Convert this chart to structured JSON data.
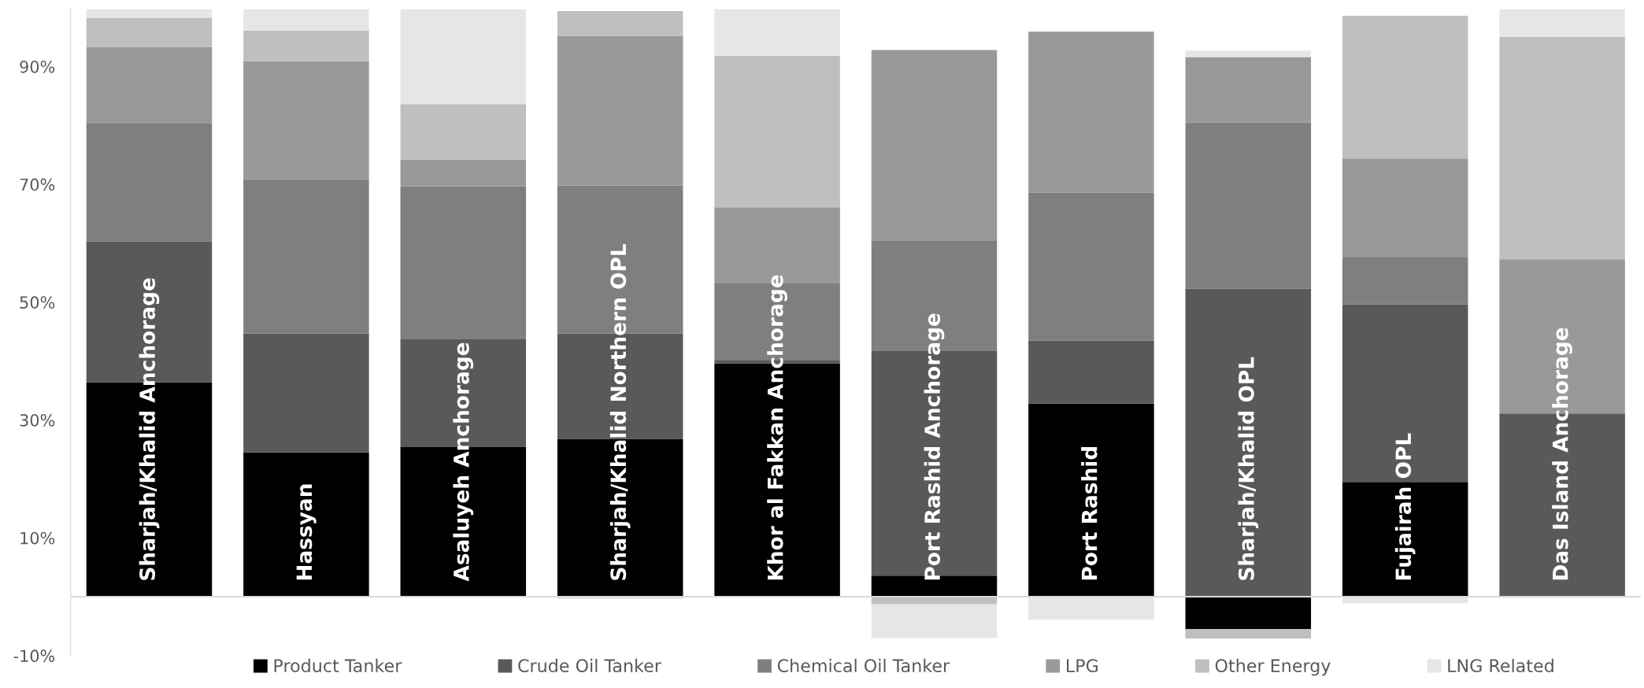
{
  "chart_data": {
    "type": "bar",
    "stacked": true,
    "legend": "bottom",
    "grid": false,
    "categories": [
      "Sharjah/Khalid Anchorage",
      "Hassyan",
      "Asaluyeh Anchorage",
      "Sharjah/Khalid Northern OPL",
      "Khor al Fakkan Anchorage",
      "Port Rashid Anchorage",
      "Port Rashid",
      "Sharjah/Khalid OPL",
      "Fujairah OPL",
      "Das Island Anchorage"
    ],
    "ylim": [
      -10,
      100
    ],
    "yticks": [
      {
        "value": -10,
        "label": "-10%"
      },
      {
        "value": 10,
        "label": "10%"
      },
      {
        "value": 30,
        "label": "30%"
      },
      {
        "value": 50,
        "label": "50%"
      },
      {
        "value": 70,
        "label": "70%"
      },
      {
        "value": 90,
        "label": "90%"
      }
    ],
    "series": [
      {
        "name": "Product Tanker",
        "color": "#000000",
        "values": [
          36.4,
          24.5,
          25.4,
          26.8,
          39.6,
          3.6,
          32.8,
          -5.5,
          19.5,
          0
        ]
      },
      {
        "name": "Crude Oil Tanker",
        "color": "#595959",
        "values": [
          23.9,
          20.2,
          18.3,
          17.9,
          0.6,
          38.1,
          10.7,
          52.3,
          30.1,
          31.1
        ]
      },
      {
        "name": "Chemical Oil Tanker",
        "color": "#7f7f7f",
        "values": [
          20.0,
          26.0,
          26.0,
          25.1,
          13.1,
          18.7,
          25.1,
          28.2,
          8.0,
          0
        ]
      },
      {
        "name": "LPG",
        "color": "#999999",
        "values": [
          13.0,
          20.2,
          4.5,
          25.4,
          12.8,
          32.4,
          27.3,
          11.1,
          16.8,
          26.2
        ]
      },
      {
        "name": "Other Energy",
        "color": "#bfbfbf",
        "values": [
          4.9,
          5.2,
          9.4,
          4.2,
          25.7,
          -1.3,
          0,
          -1.6,
          24.2,
          37.7
        ]
      },
      {
        "name": "LNG Related",
        "color": "#e6e6e6",
        "values": [
          1.5,
          3.6,
          16.1,
          -0.4,
          7.9,
          -5.7,
          -3.9,
          1.1,
          -1.1,
          4.7
        ]
      }
    ]
  }
}
